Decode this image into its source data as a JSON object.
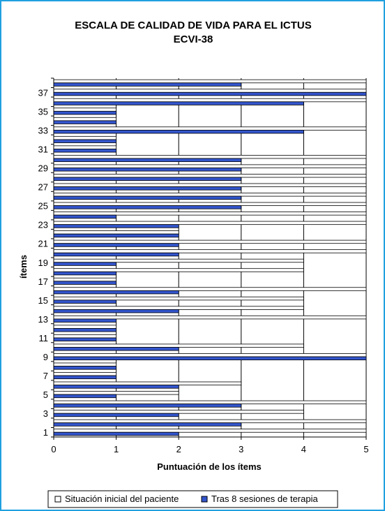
{
  "chart_data": {
    "type": "bar",
    "orientation": "horizontal",
    "title": "ESCALA DE CALIDAD DE VIDA PARA EL ICTUS",
    "subtitle": "ECVI-38",
    "xlabel": "Puntuación de los ítems",
    "ylabel": "ítems",
    "xlim": [
      0,
      5
    ],
    "x_ticks": [
      "0",
      "1",
      "2",
      "3",
      "4",
      "5"
    ],
    "y_tick_labels": [
      "1",
      "3",
      "5",
      "7",
      "9",
      "11",
      "13",
      "15",
      "17",
      "19",
      "21",
      "23",
      "25",
      "27",
      "29",
      "31",
      "33",
      "35",
      "37"
    ],
    "categories": [
      "1",
      "2",
      "3",
      "4",
      "5",
      "6",
      "7",
      "8",
      "9",
      "10",
      "11",
      "12",
      "13",
      "14",
      "15",
      "16",
      "17",
      "18",
      "19",
      "20",
      "21",
      "22",
      "23",
      "24",
      "25",
      "26",
      "27",
      "28",
      "29",
      "30",
      "31",
      "32",
      "33",
      "34",
      "35",
      "36",
      "37",
      "38"
    ],
    "series": [
      {
        "name": "Situación inicial del paciente",
        "color": "#ffffff",
        "values": [
          5,
          5,
          4,
          5,
          2,
          3,
          1,
          1,
          5,
          4,
          1,
          1,
          5,
          4,
          4,
          5,
          1,
          4,
          4,
          5,
          5,
          2,
          5,
          5,
          5,
          5,
          5,
          5,
          5,
          5,
          1,
          1,
          5,
          1,
          1,
          5,
          5,
          5
        ]
      },
      {
        "name": "Tras 8 sesiones de terapia",
        "color": "#3355cc",
        "values": [
          2,
          3,
          2,
          3,
          1,
          2,
          1,
          1,
          5,
          2,
          1,
          1,
          1,
          2,
          1,
          2,
          1,
          1,
          1,
          2,
          2,
          2,
          2,
          1,
          3,
          3,
          3,
          3,
          3,
          3,
          1,
          1,
          4,
          1,
          1,
          4,
          5,
          3
        ]
      }
    ],
    "grid": true,
    "legend_position": "bottom"
  }
}
